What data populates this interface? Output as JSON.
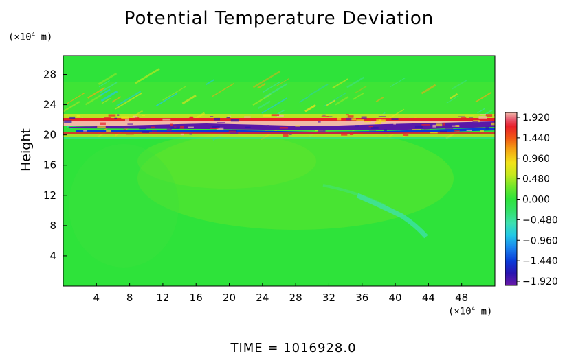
{
  "chart_data": {
    "type": "heatmap",
    "title": "Potential Temperature Deviation",
    "ylabel": "Height",
    "xlabel": "",
    "x_unit_prefix": "(×10",
    "x_unit_exp": "4",
    "x_unit_suffix": " m)",
    "y_unit_prefix": "(×10",
    "y_unit_exp": "4",
    "y_unit_suffix": " m)",
    "xlim": [
      0,
      52
    ],
    "ylim": [
      0,
      30.5
    ],
    "x_ticks": [
      "4",
      "8",
      "12",
      "16",
      "20",
      "24",
      "28",
      "32",
      "36",
      "40",
      "44",
      "48"
    ],
    "y_ticks": [
      "4",
      "8",
      "12",
      "16",
      "20",
      "24",
      "28"
    ],
    "colorbar": {
      "labels": [
        "1.920",
        "1.440",
        "0.960",
        "0.480",
        "0.000",
        "−0.480",
        "−0.960",
        "−1.440",
        "−1.920"
      ],
      "range": [
        -1.92,
        1.92
      ],
      "colors": [
        "#6a1aa8",
        "#2a14b0",
        "#0a3ad8",
        "#1a86ee",
        "#22c8e6",
        "#3ee0b0",
        "#33e06a",
        "#2ee33a",
        "#6fe62a",
        "#c6e81e",
        "#f2e31a",
        "#f4aa14",
        "#f25a14",
        "#e8202a",
        "#e85a70",
        "#f0b8a8"
      ]
    },
    "background_value": 0.0,
    "features": [
      {
        "kind": "positive band",
        "x_range": [
          0,
          52
        ],
        "y_center": 21.5,
        "value": 1.92
      },
      {
        "kind": "negative band",
        "x_range": [
          2,
          52
        ],
        "y_center": 20.8,
        "value": -1.92
      },
      {
        "kind": "wave region",
        "x_range": [
          0,
          52
        ],
        "y_range": [
          19,
          25.5
        ],
        "value_range": [
          -1.0,
          1.0
        ]
      }
    ]
  },
  "footer": "TIME  =  1016928.0"
}
